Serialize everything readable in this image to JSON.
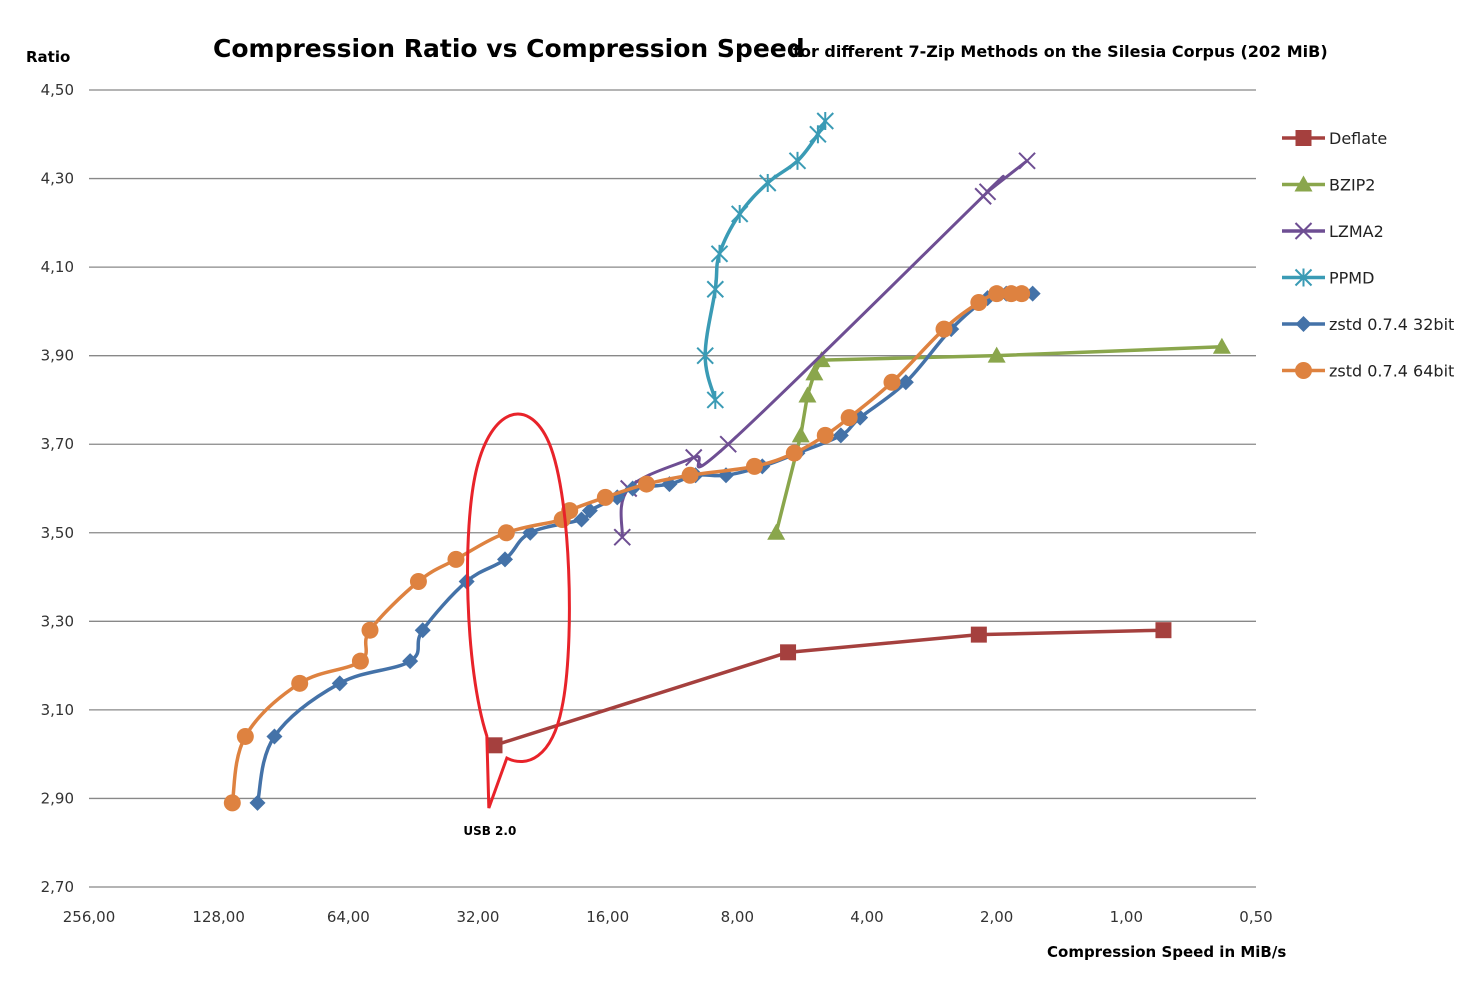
{
  "chart_data": {
    "type": "line",
    "title": "Compression Ratio vs Compression Speed",
    "subtitle": "for different 7-Zip Methods on the Silesia Corpus (202 MiB)",
    "xlabel": "Compression Speed in MiB/s",
    "ylabel": "Ratio",
    "x_scale": "log2-reversed",
    "xlim": [
      256,
      0.5
    ],
    "ylim": [
      2.7,
      4.5
    ],
    "x_ticks": [
      "256,00",
      "128,00",
      "64,00",
      "32,00",
      "16,00",
      "8,00",
      "4,00",
      "2,00",
      "1,00",
      "0,50"
    ],
    "x_tick_values": [
      256,
      128,
      64,
      32,
      16,
      8,
      4,
      2,
      1,
      0.5
    ],
    "y_ticks": [
      "4,50",
      "4,30",
      "4,10",
      "3,90",
      "3,70",
      "3,50",
      "3,30",
      "3,10",
      "2,90",
      "2,70"
    ],
    "y_tick_values": [
      4.5,
      4.3,
      4.1,
      3.9,
      3.7,
      3.5,
      3.3,
      3.1,
      2.9,
      2.7
    ],
    "grid": true,
    "legend_position": "right",
    "series": [
      {
        "name": "Deflate",
        "color": "#A5403E",
        "marker": "square",
        "points": [
          [
            29.3,
            3.02
          ],
          [
            6.1,
            3.23
          ],
          [
            2.2,
            3.27
          ],
          [
            0.82,
            3.28
          ]
        ]
      },
      {
        "name": "BZIP2",
        "color": "#8AA64C",
        "marker": "triangle",
        "points": [
          [
            6.5,
            3.5
          ],
          [
            5.7,
            3.72
          ],
          [
            5.5,
            3.81
          ],
          [
            5.3,
            3.86
          ],
          [
            5.1,
            3.89
          ],
          [
            2.0,
            3.9
          ],
          [
            0.6,
            3.92
          ]
        ]
      },
      {
        "name": "LZMA2",
        "color": "#6E4E93",
        "marker": "x",
        "points": [
          [
            14.8,
            3.49
          ],
          [
            14.3,
            3.6
          ],
          [
            10.1,
            3.67
          ],
          [
            8.4,
            3.7
          ],
          [
            2.15,
            4.26
          ],
          [
            2.1,
            4.27
          ],
          [
            1.7,
            4.34
          ]
        ]
      },
      {
        "name": "PPMD",
        "color": "#3A9BB5",
        "marker": "star",
        "points": [
          [
            9.0,
            3.8
          ],
          [
            9.5,
            3.9
          ],
          [
            9.0,
            4.05
          ],
          [
            8.8,
            4.13
          ],
          [
            7.9,
            4.22
          ],
          [
            6.8,
            4.29
          ],
          [
            5.8,
            4.34
          ],
          [
            5.2,
            4.4
          ],
          [
            5.0,
            4.43
          ]
        ]
      },
      {
        "name": "zstd 0.7.4 32bit",
        "color": "#4472A8",
        "marker": "diamond",
        "points": [
          [
            104,
            2.89
          ],
          [
            95,
            3.04
          ],
          [
            67,
            3.16
          ],
          [
            46,
            3.21
          ],
          [
            43,
            3.28
          ],
          [
            34,
            3.39
          ],
          [
            27.7,
            3.44
          ],
          [
            24.2,
            3.5
          ],
          [
            18.4,
            3.53
          ],
          [
            17.6,
            3.55
          ],
          [
            15.2,
            3.58
          ],
          [
            14.0,
            3.6
          ],
          [
            11.5,
            3.61
          ],
          [
            10.0,
            3.63
          ],
          [
            8.5,
            3.63
          ],
          [
            7.0,
            3.65
          ],
          [
            5.8,
            3.68
          ],
          [
            4.6,
            3.72
          ],
          [
            4.15,
            3.76
          ],
          [
            3.25,
            3.84
          ],
          [
            2.55,
            3.96
          ],
          [
            2.1,
            4.03
          ],
          [
            1.9,
            4.04
          ],
          [
            1.75,
            4.04
          ],
          [
            1.65,
            4.04
          ]
        ]
      },
      {
        "name": "zstd 0.7.4 64bit",
        "color": "#DE8240",
        "marker": "circle",
        "points": [
          [
            119,
            2.89
          ],
          [
            111,
            3.04
          ],
          [
            83,
            3.16
          ],
          [
            60,
            3.21
          ],
          [
            57,
            3.28
          ],
          [
            44,
            3.39
          ],
          [
            36,
            3.44
          ],
          [
            27.5,
            3.5
          ],
          [
            20.4,
            3.53
          ],
          [
            19.6,
            3.55
          ],
          [
            16.2,
            3.58
          ],
          [
            13.0,
            3.61
          ],
          [
            10.3,
            3.63
          ],
          [
            7.3,
            3.65
          ],
          [
            5.9,
            3.68
          ],
          [
            5.0,
            3.72
          ],
          [
            4.4,
            3.76
          ],
          [
            3.5,
            3.84
          ],
          [
            2.65,
            3.96
          ],
          [
            2.2,
            4.02
          ],
          [
            2.0,
            4.04
          ],
          [
            1.85,
            4.04
          ],
          [
            1.75,
            4.04
          ]
        ]
      }
    ],
    "annotations": [
      {
        "text": "USB 2.0",
        "shape": "callout-ellipse",
        "color": "#E8232A",
        "center_speed": 26,
        "center_ratio": 3.33
      }
    ]
  }
}
